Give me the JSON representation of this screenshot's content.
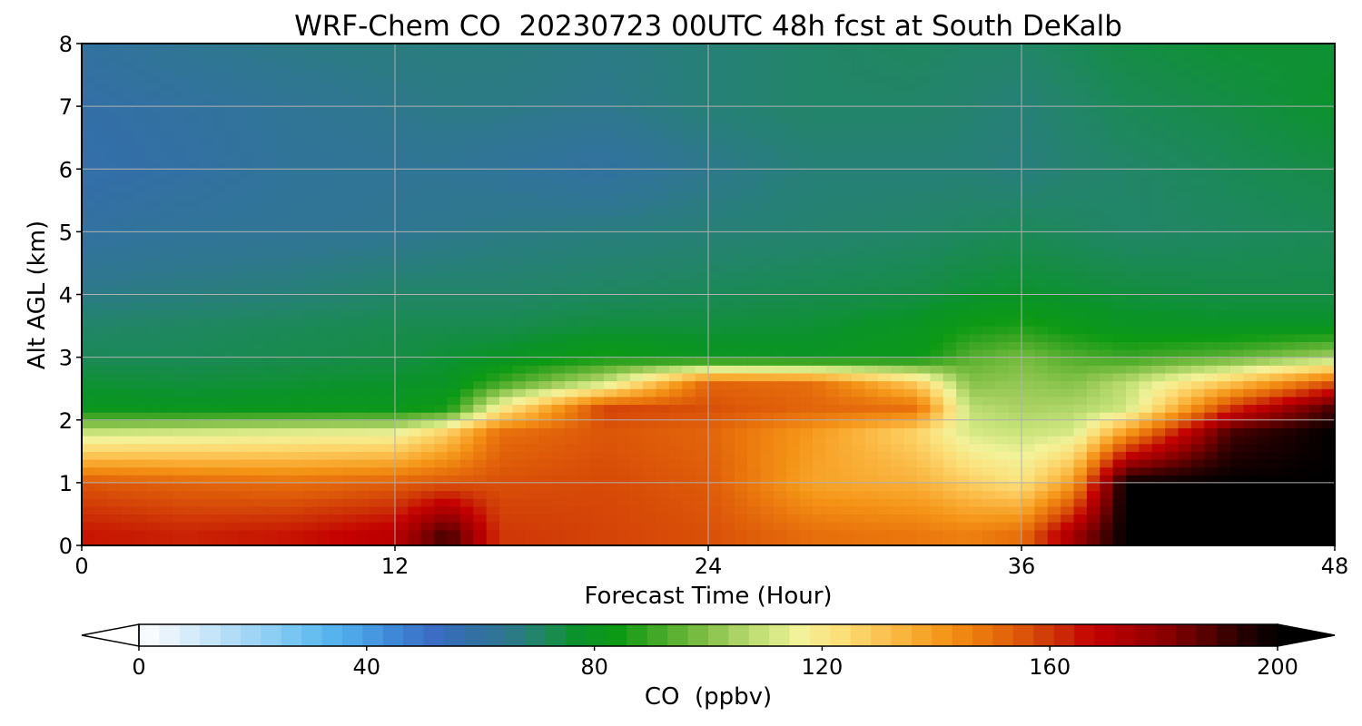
{
  "chart_data": {
    "type": "heatmap",
    "title": "WRF-Chem CO  20230723 00UTC 48h fcst at South DeKalb",
    "xlabel": "Forecast Time (Hour)",
    "ylabel": "Alt AGL (km)",
    "xlim": [
      0,
      48
    ],
    "ylim": [
      0,
      8
    ],
    "x_ticks": [
      0,
      12,
      24,
      36,
      48
    ],
    "y_ticks": [
      0,
      1,
      2,
      3,
      4,
      5,
      6,
      7,
      8
    ],
    "grid": true,
    "colorbar": {
      "label": "CO  (ppbv)",
      "range": [
        0,
        200
      ],
      "ticks": [
        0,
        40,
        80,
        120,
        160,
        200
      ],
      "extend": "both",
      "colors": [
        "#ffffff",
        "#e3f1fb",
        "#c4e4f8",
        "#a2d6f5",
        "#7fc8f3",
        "#5cb8ef",
        "#4aa3e6",
        "#3e86d6",
        "#3a6dc4",
        "#336fa6",
        "#2f7790",
        "#1f8760",
        "#0a9328",
        "#0c9a14",
        "#3ca624",
        "#6db83a",
        "#9ccb5a",
        "#c8e37a",
        "#f2f29a",
        "#fbe17c",
        "#fcc95a",
        "#f9ae36",
        "#f49316",
        "#ea760d",
        "#dc5709",
        "#cc2f06",
        "#c40000",
        "#a80000",
        "#860000",
        "#5a0000",
        "#2a0000",
        "#000000"
      ]
    },
    "x": [
      0,
      4,
      8,
      12,
      14,
      16,
      20,
      24,
      28,
      32,
      34,
      36,
      38,
      40,
      44,
      48
    ],
    "y": [
      0.2,
      1.0,
      1.8,
      2.2,
      2.6,
      3.0,
      3.5,
      4.0,
      5.0,
      6.0,
      7.0,
      8.0
    ],
    "z": [
      [
        165,
        163,
        165,
        170,
        190,
        160,
        158,
        156,
        150,
        148,
        146,
        150,
        175,
        200,
        200,
        200
      ],
      [
        155,
        152,
        150,
        153,
        155,
        156,
        157,
        154,
        138,
        135,
        128,
        122,
        140,
        200,
        200,
        200
      ],
      [
        110,
        112,
        114,
        115,
        128,
        150,
        155,
        152,
        140,
        126,
        112,
        110,
        112,
        140,
        190,
        200
      ],
      [
        80,
        79,
        80,
        81,
        84,
        118,
        158,
        156,
        152,
        150,
        108,
        105,
        106,
        110,
        160,
        190
      ],
      [
        76,
        75,
        76,
        77,
        78,
        90,
        110,
        152,
        150,
        128,
        100,
        102,
        100,
        108,
        130,
        155
      ],
      [
        72,
        72,
        73,
        74,
        76,
        78,
        84,
        80,
        79,
        82,
        94,
        98,
        93,
        90,
        95,
        105
      ],
      [
        70,
        71,
        72,
        73,
        73,
        73,
        75,
        75,
        76,
        79,
        84,
        86,
        82,
        79,
        78,
        78
      ],
      [
        66,
        67,
        68,
        70,
        70,
        70,
        71,
        72,
        73,
        74,
        76,
        77,
        76,
        75,
        74,
        74
      ],
      [
        60,
        62,
        63,
        64,
        65,
        66,
        67,
        68,
        69,
        70,
        71,
        72,
        71,
        70,
        71,
        72
      ],
      [
        57,
        59,
        62,
        63,
        63,
        62,
        60,
        65,
        68,
        68,
        68,
        67,
        69,
        70,
        72,
        74
      ],
      [
        58,
        60,
        63,
        65,
        66,
        66,
        65,
        68,
        70,
        70,
        69,
        68,
        70,
        72,
        74,
        77
      ],
      [
        60,
        64,
        66,
        67,
        67,
        67,
        66,
        68,
        70,
        71,
        70,
        70,
        72,
        74,
        76,
        76
      ]
    ]
  }
}
